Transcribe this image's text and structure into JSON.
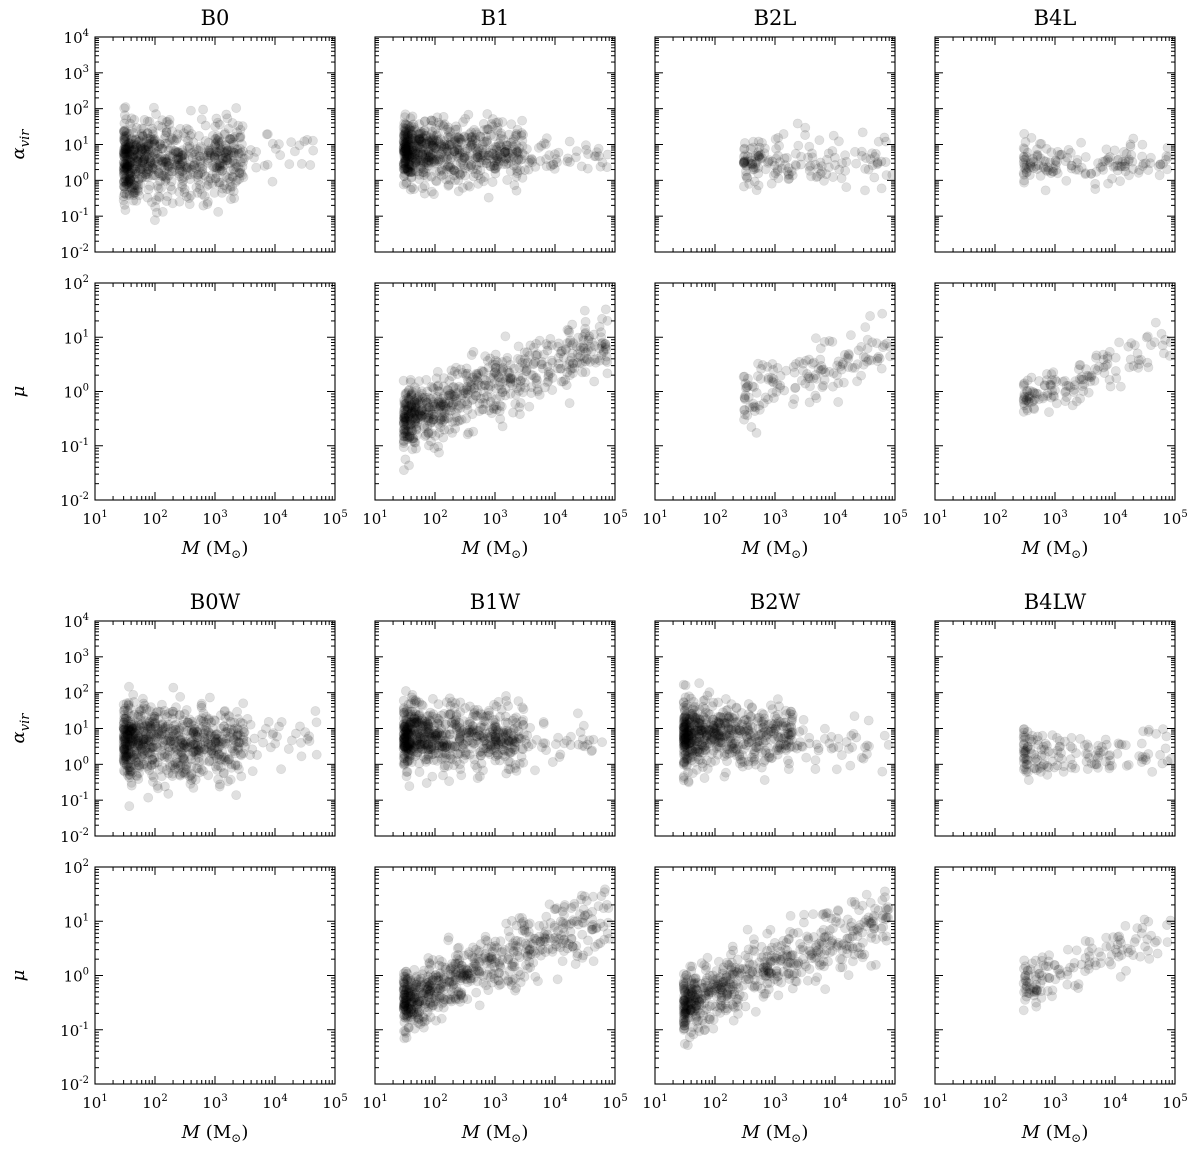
{
  "figure": {
    "note": "",
    "x_axis_label": "M (M⊙)",
    "y_axis_labels": {
      "alpha": "αvir",
      "mu": "μ"
    }
  },
  "chart_data": [
    {
      "id": "B0",
      "type": "scatter",
      "title": "B0",
      "xlabel": "M (M⊙)",
      "xlim": [
        10.0,
        100000.0
      ],
      "x_scale": "log",
      "y_scale": "log",
      "marker_color": "#000000",
      "marker_alpha": 0.12,
      "panels": [
        {
          "ylabel": "αvir",
          "ylim": [
            0.01,
            10000.0
          ],
          "points": [],
          "clusters": [
            {
              "m_min": 30,
              "m_max": 3000,
              "y_center": 3.5,
              "y_spread": 0.55,
              "n": 700
            },
            {
              "m_min": 1000,
              "m_max": 50000,
              "y_center": 6,
              "y_spread": 0.35,
              "n": 60
            }
          ]
        },
        {
          "ylabel": "μ",
          "ylim": [
            0.01,
            100.0
          ],
          "points": [],
          "clusters": []
        }
      ]
    },
    {
      "id": "B1",
      "type": "scatter",
      "title": "B1",
      "xlabel": "M (M⊙)",
      "xlim": [
        10.0,
        100000.0
      ],
      "x_scale": "log",
      "y_scale": "log",
      "marker_color": "#000000",
      "marker_alpha": 0.12,
      "panels": [
        {
          "ylabel": "αvir",
          "ylim": [
            0.01,
            10000.0
          ],
          "points": [],
          "clusters": [
            {
              "m_min": 30,
              "m_max": 3000,
              "y_center": 6,
              "y_spread": 0.45,
              "n": 650
            },
            {
              "m_min": 1000,
              "m_max": 80000,
              "y_center": 5,
              "y_spread": 0.3,
              "n": 70
            }
          ]
        },
        {
          "ylabel": "μ",
          "ylim": [
            0.01,
            100.0
          ],
          "points": [],
          "trend": {
            "m_min": 30,
            "m_max": 80000,
            "y_at_min": 0.3,
            "y_at_max": 8,
            "y_spread": 0.28,
            "n": 650
          }
        }
      ]
    },
    {
      "id": "B2L",
      "type": "scatter",
      "title": "B2L",
      "xlabel": "M (M⊙)",
      "xlim": [
        10.0,
        100000.0
      ],
      "x_scale": "log",
      "y_scale": "log",
      "marker_color": "#000000",
      "marker_alpha": 0.12,
      "panels": [
        {
          "ylabel": "αvir",
          "ylim": [
            0.01,
            10000.0
          ],
          "points": [],
          "clusters": [
            {
              "m_min": 300,
              "m_max": 90000,
              "y_center": 3.5,
              "y_spread": 0.35,
              "n": 160
            }
          ]
        },
        {
          "ylabel": "μ",
          "ylim": [
            0.01,
            100.0
          ],
          "points": [],
          "trend": {
            "m_min": 300,
            "m_max": 90000,
            "y_at_min": 0.8,
            "y_at_max": 7,
            "y_spread": 0.25,
            "n": 150
          }
        }
      ]
    },
    {
      "id": "B4L",
      "type": "scatter",
      "title": "B4L",
      "xlabel": "M (M⊙)",
      "xlim": [
        10.0,
        100000.0
      ],
      "x_scale": "log",
      "y_scale": "log",
      "marker_color": "#000000",
      "marker_alpha": 0.12,
      "panels": [
        {
          "ylabel": "αvir",
          "ylim": [
            0.01,
            10000.0
          ],
          "points": [],
          "clusters": [
            {
              "m_min": 300,
              "m_max": 90000,
              "y_center": 3,
              "y_spread": 0.3,
              "n": 150
            }
          ]
        },
        {
          "ylabel": "μ",
          "ylim": [
            0.01,
            100.0
          ],
          "points": [],
          "trend": {
            "m_min": 300,
            "m_max": 90000,
            "y_at_min": 0.7,
            "y_at_max": 7,
            "y_spread": 0.22,
            "n": 140
          }
        }
      ]
    },
    {
      "id": "B0W",
      "type": "scatter",
      "title": "B0W",
      "xlabel": "M (M⊙)",
      "xlim": [
        10.0,
        100000.0
      ],
      "x_scale": "log",
      "y_scale": "log",
      "marker_color": "#000000",
      "marker_alpha": 0.12,
      "panels": [
        {
          "ylabel": "αvir",
          "ylim": [
            0.01,
            10000.0
          ],
          "points": [],
          "clusters": [
            {
              "m_min": 30,
              "m_max": 3000,
              "y_center": 4,
              "y_spread": 0.5,
              "n": 700
            },
            {
              "m_min": 1000,
              "m_max": 50000,
              "y_center": 5,
              "y_spread": 0.3,
              "n": 60
            }
          ]
        },
        {
          "ylabel": "μ",
          "ylim": [
            0.01,
            100.0
          ],
          "points": [],
          "clusters": []
        }
      ]
    },
    {
      "id": "B1W",
      "type": "scatter",
      "title": "B1W",
      "xlabel": "M (M⊙)",
      "xlim": [
        10.0,
        100000.0
      ],
      "x_scale": "log",
      "y_scale": "log",
      "marker_color": "#000000",
      "marker_alpha": 0.12,
      "panels": [
        {
          "ylabel": "αvir",
          "ylim": [
            0.01,
            10000.0
          ],
          "points": [],
          "clusters": [
            {
              "m_min": 30,
              "m_max": 3000,
              "y_center": 6,
              "y_spread": 0.45,
              "n": 650
            },
            {
              "m_min": 1000,
              "m_max": 80000,
              "y_center": 4,
              "y_spread": 0.3,
              "n": 70
            }
          ]
        },
        {
          "ylabel": "μ",
          "ylim": [
            0.01,
            100.0
          ],
          "points": [],
          "trend": {
            "m_min": 30,
            "m_max": 80000,
            "y_at_min": 0.3,
            "y_at_max": 15,
            "y_spread": 0.28,
            "n": 650
          }
        }
      ]
    },
    {
      "id": "B2W",
      "type": "scatter",
      "title": "B2W",
      "xlabel": "M (M⊙)",
      "xlim": [
        10.0,
        100000.0
      ],
      "x_scale": "log",
      "y_scale": "log",
      "marker_color": "#000000",
      "marker_alpha": 0.12,
      "panels": [
        {
          "ylabel": "αvir",
          "ylim": [
            0.01,
            10000.0
          ],
          "points": [],
          "clusters": [
            {
              "m_min": 30,
              "m_max": 2000,
              "y_center": 7,
              "y_spread": 0.45,
              "n": 600
            },
            {
              "m_min": 1000,
              "m_max": 80000,
              "y_center": 4,
              "y_spread": 0.35,
              "n": 60
            }
          ]
        },
        {
          "ylabel": "μ",
          "ylim": [
            0.01,
            100.0
          ],
          "points": [],
          "trend": {
            "m_min": 30,
            "m_max": 80000,
            "y_at_min": 0.3,
            "y_at_max": 10,
            "y_spread": 0.3,
            "n": 600
          }
        }
      ]
    },
    {
      "id": "B4LW",
      "type": "scatter",
      "title": "B4LW",
      "xlabel": "M (M⊙)",
      "xlim": [
        10.0,
        100000.0
      ],
      "x_scale": "log",
      "y_scale": "log",
      "marker_color": "#000000",
      "marker_alpha": 0.12,
      "panels": [
        {
          "ylabel": "αvir",
          "ylim": [
            0.01,
            10000.0
          ],
          "points": [],
          "clusters": [
            {
              "m_min": 300,
              "m_max": 90000,
              "y_center": 2,
              "y_spread": 0.3,
              "n": 150
            }
          ]
        },
        {
          "ylabel": "μ",
          "ylim": [
            0.01,
            100.0
          ],
          "points": [],
          "trend": {
            "m_min": 300,
            "m_max": 90000,
            "y_at_min": 0.7,
            "y_at_max": 8,
            "y_spread": 0.22,
            "n": 140
          }
        }
      ]
    }
  ]
}
